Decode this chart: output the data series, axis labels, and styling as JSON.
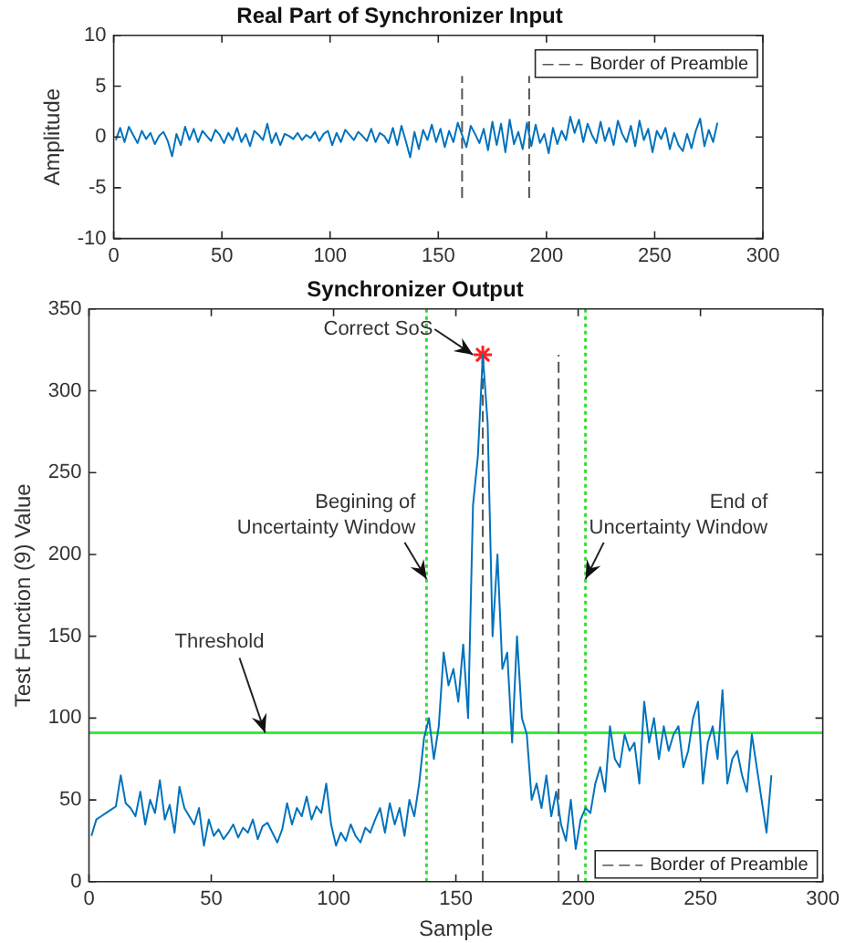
{
  "chart_data": [
    {
      "type": "line",
      "title": "Real Part of Synchronizer Input",
      "ylabel": "Amplitude",
      "xlim": [
        0,
        300
      ],
      "xticks": [
        0,
        50,
        100,
        150,
        200,
        250,
        300
      ],
      "ylim": [
        -10,
        10
      ],
      "yticks": [
        -10,
        -5,
        0,
        5,
        10
      ],
      "grid": false,
      "legend": "top right",
      "series": [
        {
          "color": "#0072bd",
          "x": [
            1,
            3,
            5,
            7,
            9,
            11,
            13,
            15,
            17,
            19,
            21,
            23,
            25,
            27,
            29,
            31,
            33,
            35,
            37,
            39,
            41,
            43,
            45,
            47,
            49,
            51,
            53,
            55,
            57,
            59,
            61,
            63,
            65,
            67,
            69,
            71,
            73,
            75,
            77,
            79,
            81,
            83,
            85,
            87,
            89,
            91,
            93,
            95,
            97,
            99,
            101,
            103,
            105,
            107,
            109,
            111,
            113,
            115,
            117,
            119,
            121,
            123,
            125,
            127,
            129,
            131,
            133,
            135,
            137,
            139,
            141,
            143,
            145,
            147,
            149,
            151,
            153,
            155,
            157,
            159,
            161,
            163,
            165,
            167,
            169,
            171,
            173,
            175,
            177,
            179,
            181,
            183,
            185,
            187,
            189,
            191,
            193,
            195,
            197,
            199,
            201,
            203,
            205,
            207,
            209,
            211,
            213,
            215,
            217,
            219,
            221,
            223,
            225,
            227,
            229,
            231,
            233,
            235,
            237,
            239,
            241,
            243,
            245,
            247,
            249,
            251,
            253,
            255,
            257,
            259,
            261,
            263,
            265,
            267,
            269,
            271,
            273,
            275,
            277,
            279
          ],
          "values": [
            -0.3,
            0.9,
            -0.5,
            1.0,
            0.2,
            -0.6,
            0.6,
            -0.2,
            0.4,
            -0.7,
            0.1,
            0.5,
            -0.4,
            -1.9,
            0.3,
            -0.8,
            1.0,
            -0.3,
            0.8,
            -0.5,
            0.6,
            0.1,
            -0.4,
            0.7,
            0.2,
            -0.6,
            0.4,
            -0.3,
            0.9,
            -0.5,
            0.3,
            -0.9,
            0.6,
            0.2,
            -0.3,
            1.3,
            -0.6,
            0.4,
            -0.8,
            0.3,
            0.1,
            -0.2,
            0.4,
            -0.3,
            0.2,
            -0.1,
            0.5,
            -0.4,
            0.3,
            0.6,
            -0.8,
            0.4,
            -0.5,
            0.7,
            0.2,
            -0.3,
            0.5,
            0.1,
            -0.4,
            0.8,
            -0.5,
            0.4,
            0.1,
            -0.6,
            0.9,
            -0.8,
            1.1,
            -0.4,
            -2.0,
            0.5,
            -1.2,
            0.7,
            -0.3,
            1.2,
            -0.5,
            0.8,
            -1.0,
            0.6,
            -0.5,
            1.4,
            0.2,
            -1.0,
            1.1,
            0.3,
            -0.6,
            0.8,
            -1.3,
            1.5,
            -0.8,
            1.3,
            -1.5,
            1.7,
            -0.7,
            0.5,
            -1.2,
            1.4,
            -0.9,
            1.2,
            -0.6,
            0.3,
            -1.6,
            0.9,
            -0.7,
            0.6,
            -0.3,
            2.0,
            0.4,
            1.7,
            -0.5,
            1.3,
            0.2,
            -0.6,
            1.5,
            -0.4,
            0.9,
            -0.8,
            1.6,
            0.3,
            -0.5,
            1.1,
            -0.9,
            1.6,
            -0.3,
            0.8,
            -1.5,
            0.6,
            -0.2,
            0.9,
            -1.2,
            0.4,
            -0.8,
            -1.4,
            0.3,
            -1.1,
            0.6,
            1.8,
            -0.9,
            0.7,
            -0.5,
            1.4
          ]
        },
        {
          "name": "Border of Preamble",
          "color": "#555555",
          "line_style": "dashed",
          "x": [
            161,
            161,
            null,
            192,
            192
          ],
          "values": [
            -6,
            6,
            null,
            -6,
            6
          ]
        }
      ]
    },
    {
      "type": "line",
      "title": "Synchronizer Output",
      "xlabel": "Sample",
      "ylabel": "Test Function (9) Value",
      "xlim": [
        0,
        300
      ],
      "xticks": [
        0,
        50,
        100,
        150,
        200,
        250,
        300
      ],
      "ylim": [
        0,
        350
      ],
      "yticks": [
        0,
        50,
        100,
        150,
        200,
        250,
        300,
        350
      ],
      "grid": false,
      "legend": "bottom right",
      "series": [
        {
          "color": "#0072bd",
          "x": [
            1,
            3,
            5,
            7,
            9,
            11,
            13,
            15,
            17,
            19,
            21,
            23,
            25,
            27,
            29,
            31,
            33,
            35,
            37,
            39,
            41,
            43,
            45,
            47,
            49,
            51,
            53,
            55,
            57,
            59,
            61,
            63,
            65,
            67,
            69,
            71,
            73,
            75,
            77,
            79,
            81,
            83,
            85,
            87,
            89,
            91,
            93,
            95,
            97,
            99,
            101,
            103,
            105,
            107,
            109,
            111,
            113,
            115,
            117,
            119,
            121,
            123,
            125,
            127,
            129,
            131,
            133,
            135,
            137,
            139,
            141,
            143,
            145,
            147,
            149,
            151,
            153,
            155,
            157,
            159,
            161,
            163,
            165,
            167,
            169,
            171,
            173,
            175,
            177,
            179,
            181,
            183,
            185,
            187,
            189,
            191,
            193,
            195,
            197,
            199,
            201,
            203,
            205,
            207,
            209,
            211,
            213,
            215,
            217,
            219,
            221,
            223,
            225,
            227,
            229,
            231,
            233,
            235,
            237,
            239,
            241,
            243,
            245,
            247,
            249,
            251,
            253,
            255,
            257,
            259,
            261,
            263,
            265,
            267,
            269,
            271,
            273,
            275,
            277,
            279
          ],
          "values": [
            28,
            38,
            40,
            42,
            44,
            46,
            65,
            48,
            45,
            40,
            55,
            35,
            50,
            42,
            62,
            38,
            47,
            30,
            58,
            45,
            40,
            35,
            45,
            22,
            38,
            28,
            32,
            26,
            30,
            35,
            27,
            33,
            30,
            38,
            26,
            34,
            36,
            30,
            24,
            32,
            48,
            35,
            45,
            40,
            52,
            38,
            46,
            42,
            60,
            35,
            22,
            30,
            25,
            35,
            28,
            24,
            33,
            30,
            38,
            45,
            30,
            48,
            35,
            45,
            28,
            50,
            40,
            60,
            88,
            100,
            75,
            95,
            140,
            120,
            130,
            110,
            145,
            100,
            230,
            260,
            322,
            280,
            150,
            200,
            130,
            140,
            85,
            150,
            100,
            90,
            50,
            60,
            45,
            65,
            40,
            55,
            35,
            25,
            50,
            20,
            38,
            45,
            42,
            60,
            70,
            55,
            95,
            75,
            70,
            90,
            80,
            85,
            60,
            110,
            85,
            100,
            75,
            95,
            80,
            90,
            95,
            70,
            80,
            100,
            110,
            60,
            85,
            95,
            75,
            117,
            60,
            75,
            80,
            65,
            55,
            90,
            70,
            50,
            30,
            65
          ]
        },
        {
          "name": "Border of Preamble",
          "color": "#555555",
          "line_style": "dashed",
          "x": [
            161,
            161,
            null,
            192,
            192
          ],
          "values": [
            0,
            322,
            null,
            0,
            322
          ]
        },
        {
          "type": "scatter",
          "marker": "cross",
          "color": "#ff2020",
          "x": [
            161
          ],
          "values": [
            322
          ]
        }
      ],
      "ref_lines": [
        {
          "axis": "y",
          "value": 91,
          "color": "#33ee33",
          "line_style": "solid"
        },
        {
          "axis": "x",
          "value": 138,
          "color": "#33dd33",
          "line_style": "dotted"
        },
        {
          "axis": "x",
          "value": 203,
          "color": "#33dd33",
          "line_style": "dotted"
        }
      ],
      "annotations": [
        {
          "text": "Correct SoS",
          "x": 157,
          "y": 322
        },
        {
          "text": "Begining of\nUncertainty Window",
          "x": 138,
          "y": 185
        },
        {
          "text": "End of\nUncertainty Window",
          "x": 203,
          "y": 185
        },
        {
          "text": "Threshold",
          "x": 72,
          "y": 91
        }
      ]
    }
  ]
}
